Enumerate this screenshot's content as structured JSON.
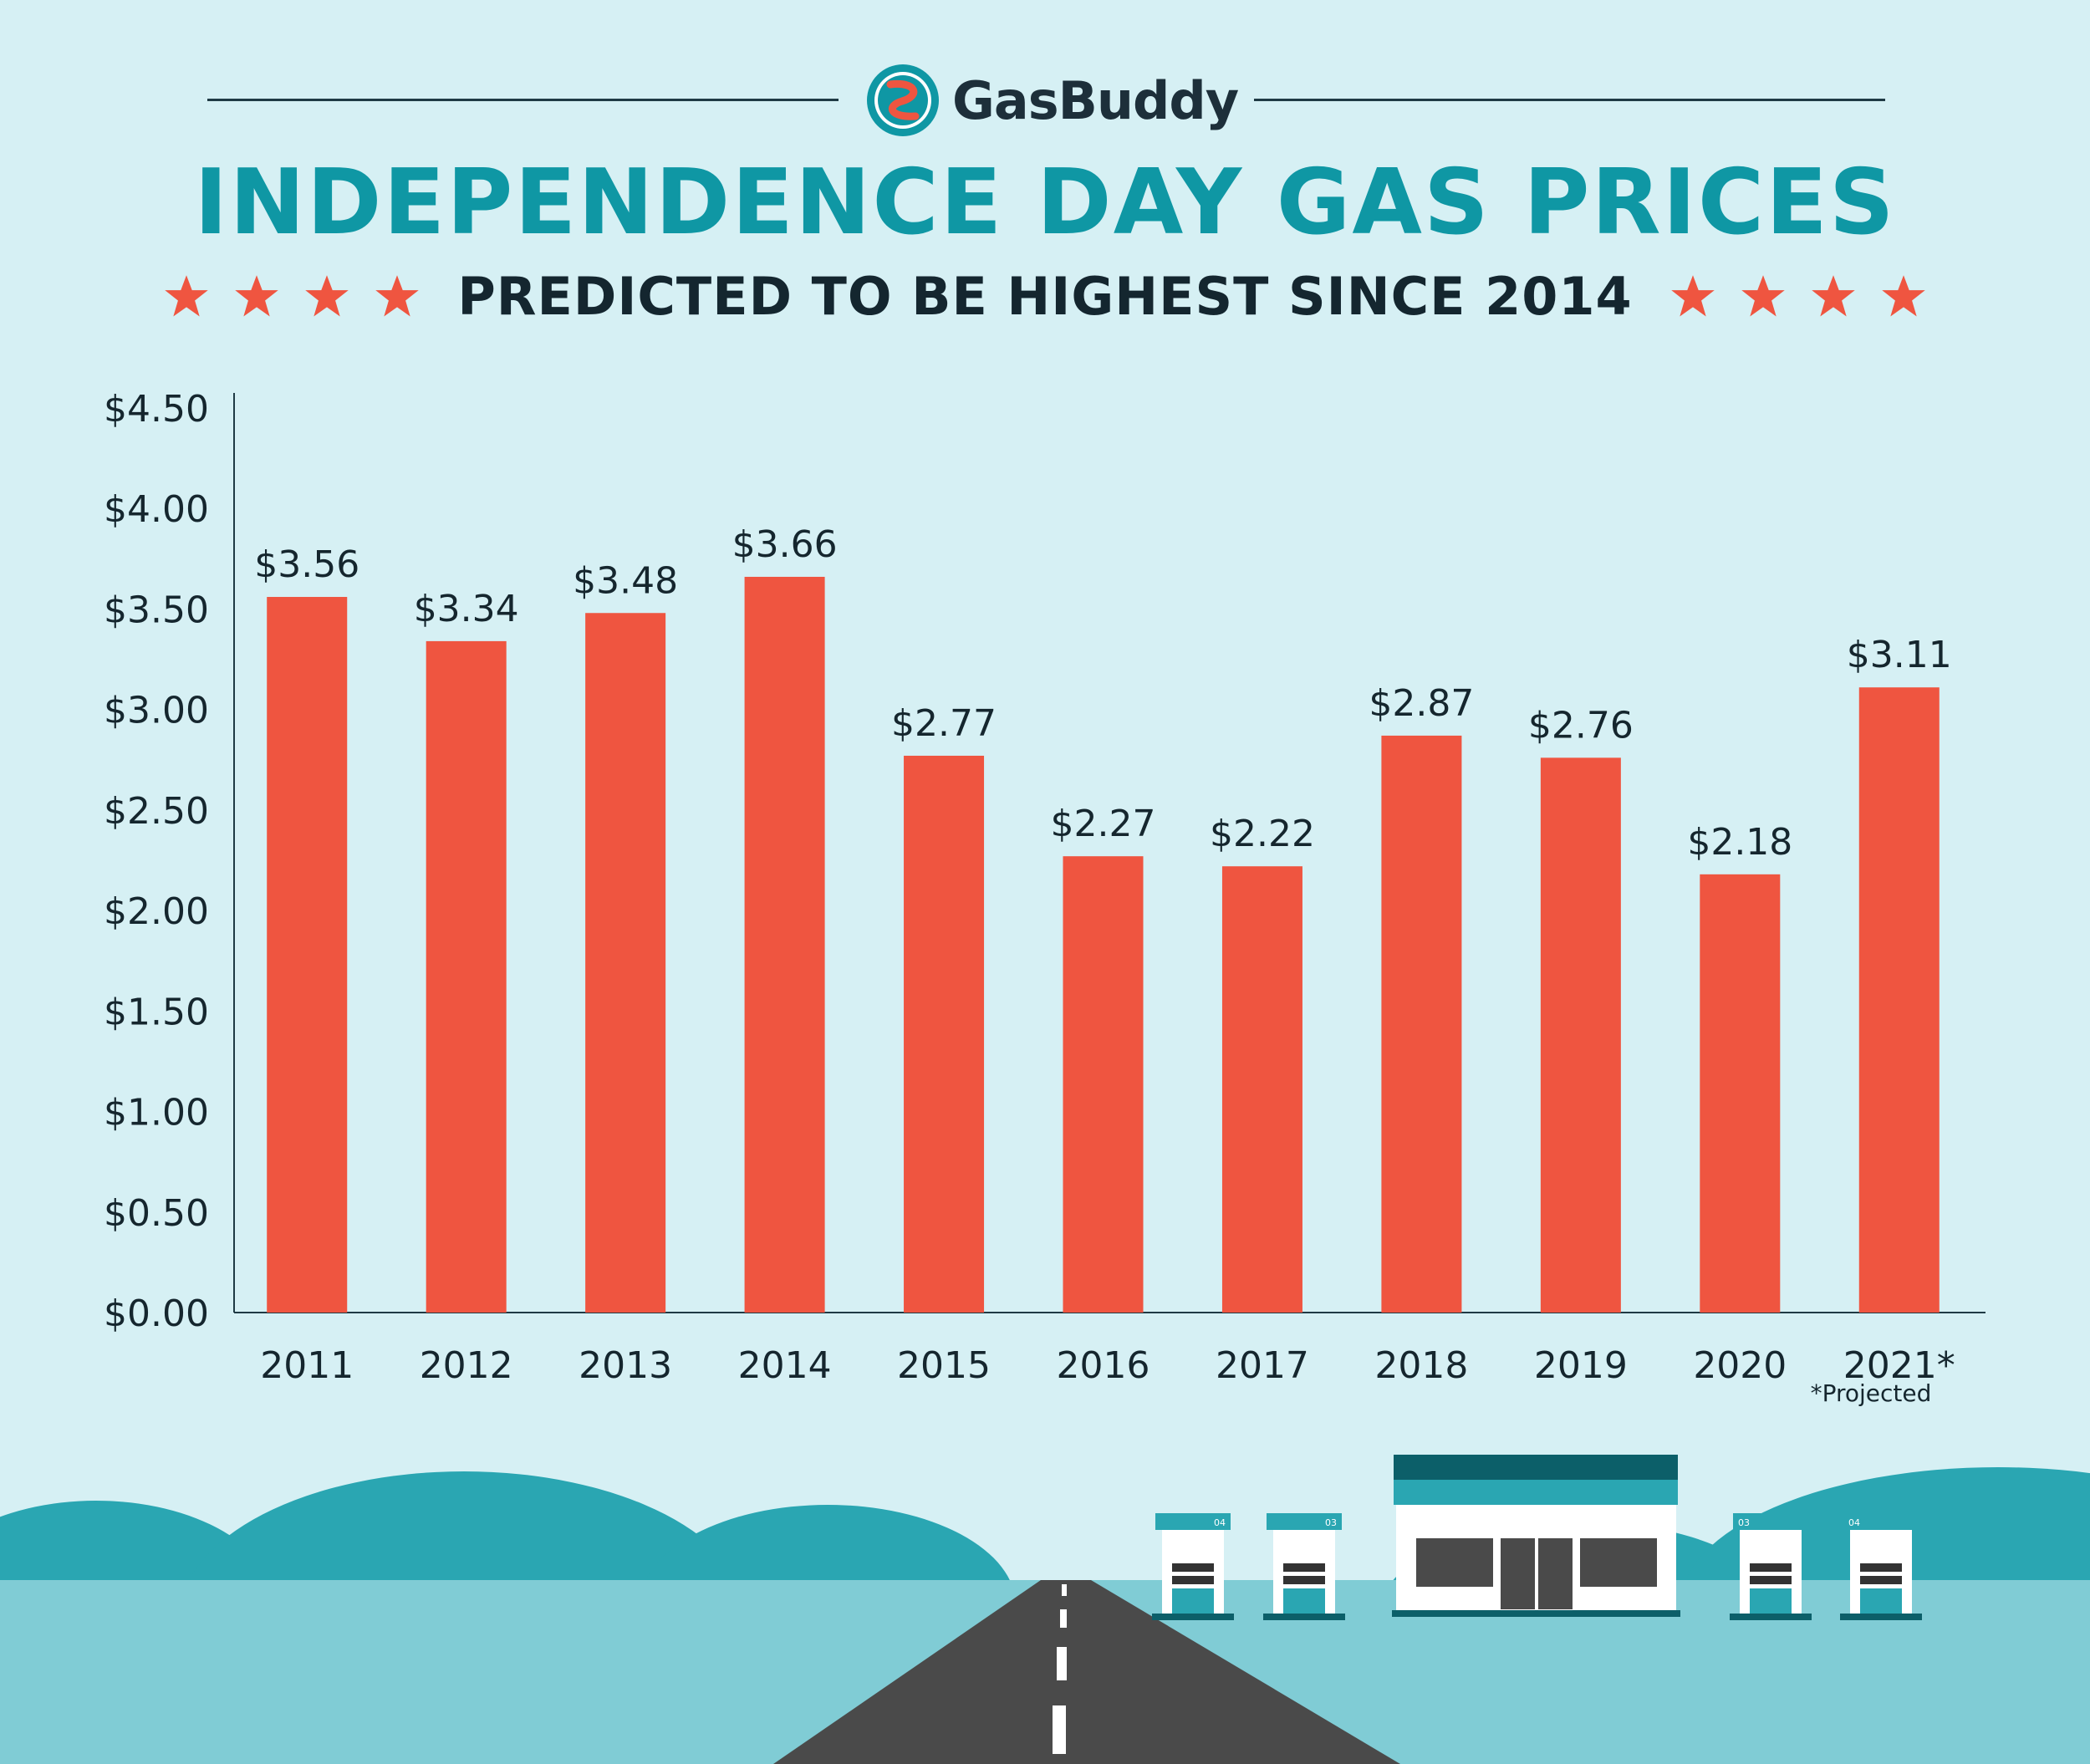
{
  "header": {
    "brand": "GasBuddy",
    "title": "INDEPENDENCE DAY GAS PRICES",
    "subtitle": "PREDICTED TO BE HIGHEST SINCE 2014"
  },
  "colors": {
    "background": "#d6f0f4",
    "bar": "#ef5540",
    "title": "#0f97a4",
    "star": "#ef5540"
  },
  "chart_data": {
    "type": "bar",
    "title": "",
    "xlabel": "",
    "ylabel": "",
    "categories": [
      "2011",
      "2012",
      "2013",
      "2014",
      "2015",
      "2016",
      "2017",
      "2018",
      "2019",
      "2020",
      "2021*"
    ],
    "values": [
      3.56,
      3.34,
      3.48,
      3.66,
      2.77,
      2.27,
      2.22,
      2.87,
      2.76,
      2.18,
      3.11
    ],
    "value_labels": [
      "$3.56",
      "$3.34",
      "$3.48",
      "$3.66",
      "$2.77",
      "$2.27",
      "$2.22",
      "$2.87",
      "$2.76",
      "$2.18",
      "$3.11"
    ],
    "ylim": [
      0,
      4.5
    ],
    "yticks": [
      0,
      0.5,
      1.0,
      1.5,
      2.0,
      2.5,
      3.0,
      3.5,
      4.0,
      4.5
    ],
    "ytick_labels": [
      "$0.00",
      "$0.50",
      "$1.00",
      "$1.50",
      "$2.00",
      "$2.50",
      "$3.00",
      "$3.50",
      "$4.00",
      "$4.50"
    ],
    "grid": false,
    "legend": "none",
    "footnote": "*Projected"
  },
  "scene": {
    "pump_labels": [
      "04",
      "03",
      "03",
      "04"
    ]
  }
}
